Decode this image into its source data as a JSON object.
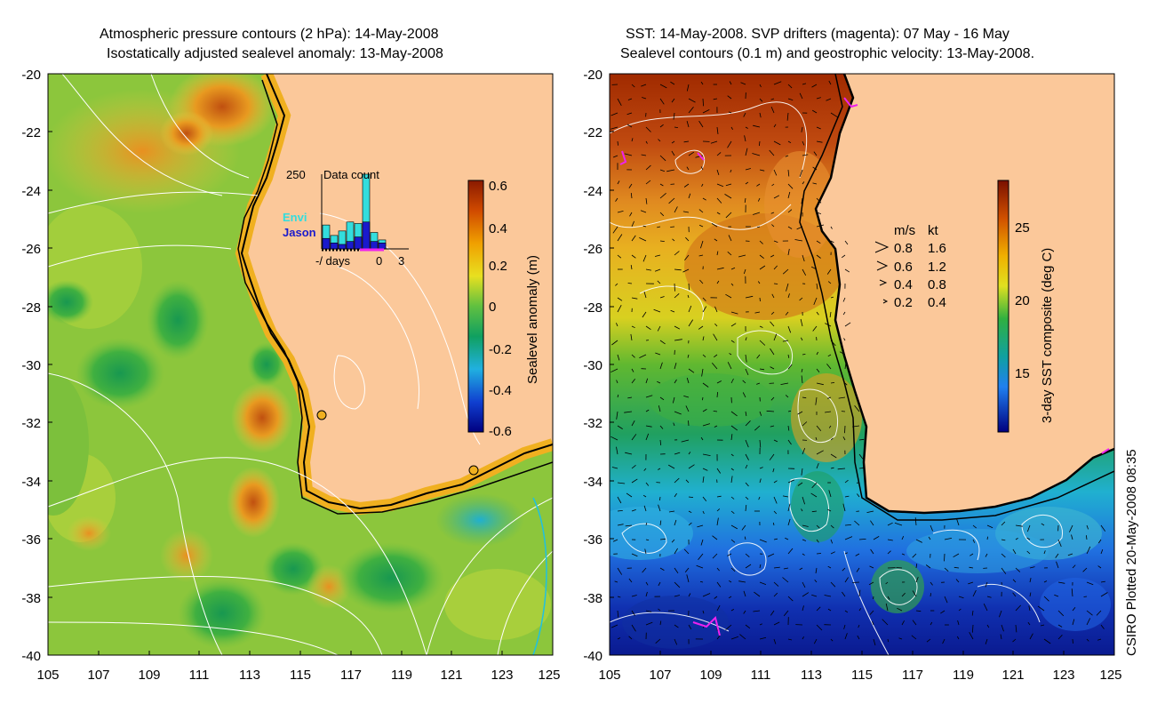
{
  "left_panel": {
    "title_line1": "Atmospheric pressure contours (2 hPa): 14-May-2008",
    "title_line2": "Isostatically adjusted sealevel anomaly: 13-May-2008",
    "colorbar": {
      "label": "Sealevel anomaly (m)",
      "ticks": [
        "0.6",
        "0.4",
        "0.2",
        "0",
        "-0.2",
        "-0.4",
        "-0.6"
      ]
    },
    "inset": {
      "ymax_label": "250",
      "title": "Data count",
      "series_labels": [
        "Envi",
        "Jason"
      ],
      "series_colors": [
        "#33dddd",
        "#1a1acc"
      ],
      "xlabel": "-/ days",
      "xtick_zero": "0",
      "xtick_three": "3",
      "envi_counts": [
        80,
        45,
        60,
        90,
        85,
        250,
        55,
        30
      ],
      "jason_counts": [
        35,
        20,
        15,
        25,
        40,
        90,
        25,
        20
      ]
    }
  },
  "right_panel": {
    "title_line1": "SST: 14-May-2008. SVP drifters (magenta): 07 May - 16 May",
    "title_line2": "Sealevel contours (0.1 m) and geostrophic velocity: 13-May-2008.",
    "colorbar": {
      "label": "3-day SST composite (deg C)",
      "ticks": [
        "25",
        "20",
        "15"
      ]
    },
    "speed_legend": {
      "header_ms": "m/s",
      "header_kt": "kt",
      "rows": [
        {
          "ms": "0.8",
          "kt": "1.6"
        },
        {
          "ms": "0.6",
          "kt": "1.2"
        },
        {
          "ms": "0.4",
          "kt": "0.8"
        },
        {
          "ms": "0.2",
          "kt": "0.4"
        }
      ]
    }
  },
  "axes": {
    "lat_ticks": [
      "-20",
      "-22",
      "-24",
      "-26",
      "-28",
      "-30",
      "-32",
      "-34",
      "-36",
      "-38",
      "-40"
    ],
    "lon_ticks": [
      "105",
      "107",
      "109",
      "111",
      "113",
      "115",
      "117",
      "119",
      "121",
      "123",
      "125"
    ]
  },
  "credit": "CSIRO Plotted 20-May-2008 08:35",
  "colors": {
    "land": "#fbc89a",
    "coast": "#000000",
    "contour": "#ffffff",
    "drifter": "#ee22ee"
  }
}
